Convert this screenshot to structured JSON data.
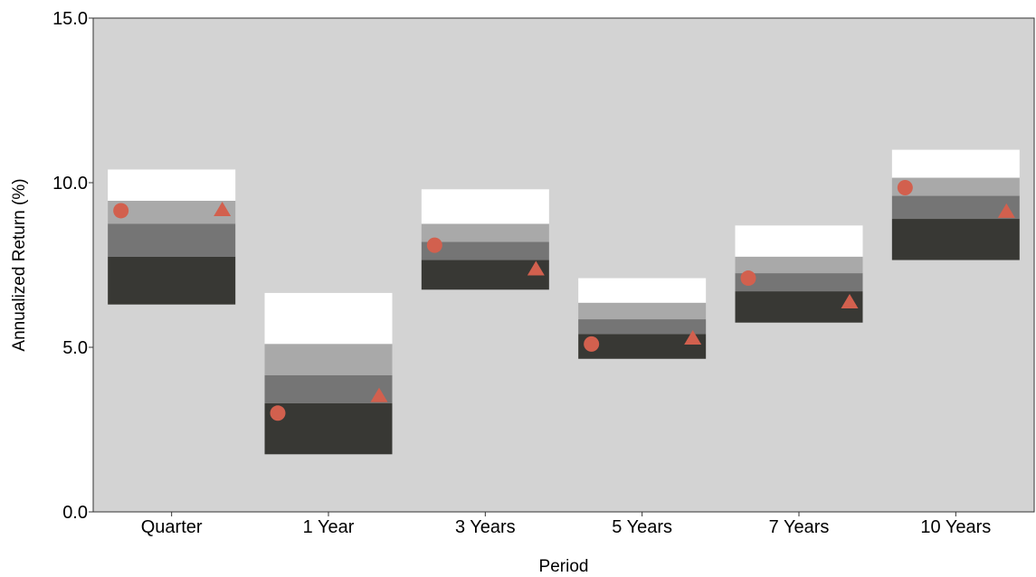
{
  "chart_data": {
    "type": "floating-bar",
    "title": "",
    "xlabel": "Period",
    "ylabel": "Annualized Return (%)",
    "ylim": [
      0,
      15
    ],
    "yticks": [
      "0.0",
      "5.0",
      "10.0",
      "15.0"
    ],
    "ytick_values": [
      0,
      5,
      10,
      15
    ],
    "grid": false,
    "legend": "none",
    "categories": [
      "Quarter",
      "1 Year",
      "3 Years",
      "5 Years",
      "7 Years",
      "10 Years"
    ],
    "ranges": [
      {
        "p5": 6.3,
        "p25": 7.75,
        "p50": 8.75,
        "p75": 9.45,
        "p95": 10.4
      },
      {
        "p5": 1.75,
        "p25": 3.3,
        "p50": 4.15,
        "p75": 5.1,
        "p95": 6.65
      },
      {
        "p5": 6.75,
        "p25": 7.65,
        "p50": 8.2,
        "p75": 8.75,
        "p95": 9.8
      },
      {
        "p5": 4.65,
        "p25": 5.4,
        "p50": 5.85,
        "p75": 6.35,
        "p95": 7.1
      },
      {
        "p5": 5.75,
        "p25": 6.7,
        "p50": 7.25,
        "p75": 7.75,
        "p95": 8.7
      },
      {
        "p5": 7.65,
        "p25": 8.9,
        "p50": 9.6,
        "p75": 10.15,
        "p95": 11.0
      }
    ],
    "series": [
      {
        "marker": "circle",
        "values": [
          9.15,
          3.0,
          8.1,
          5.1,
          7.1,
          9.85
        ]
      },
      {
        "marker": "triangle",
        "values": [
          9.15,
          3.5,
          7.35,
          5.25,
          6.35,
          9.1
        ]
      }
    ],
    "colors": {
      "plot_background": "#d3d3d3",
      "band_95_75": "#ffffff",
      "band_75_50": "#a9a9a9",
      "band_50_25": "#757575",
      "band_25_5": "#383834",
      "marker": "#d2604e"
    }
  }
}
